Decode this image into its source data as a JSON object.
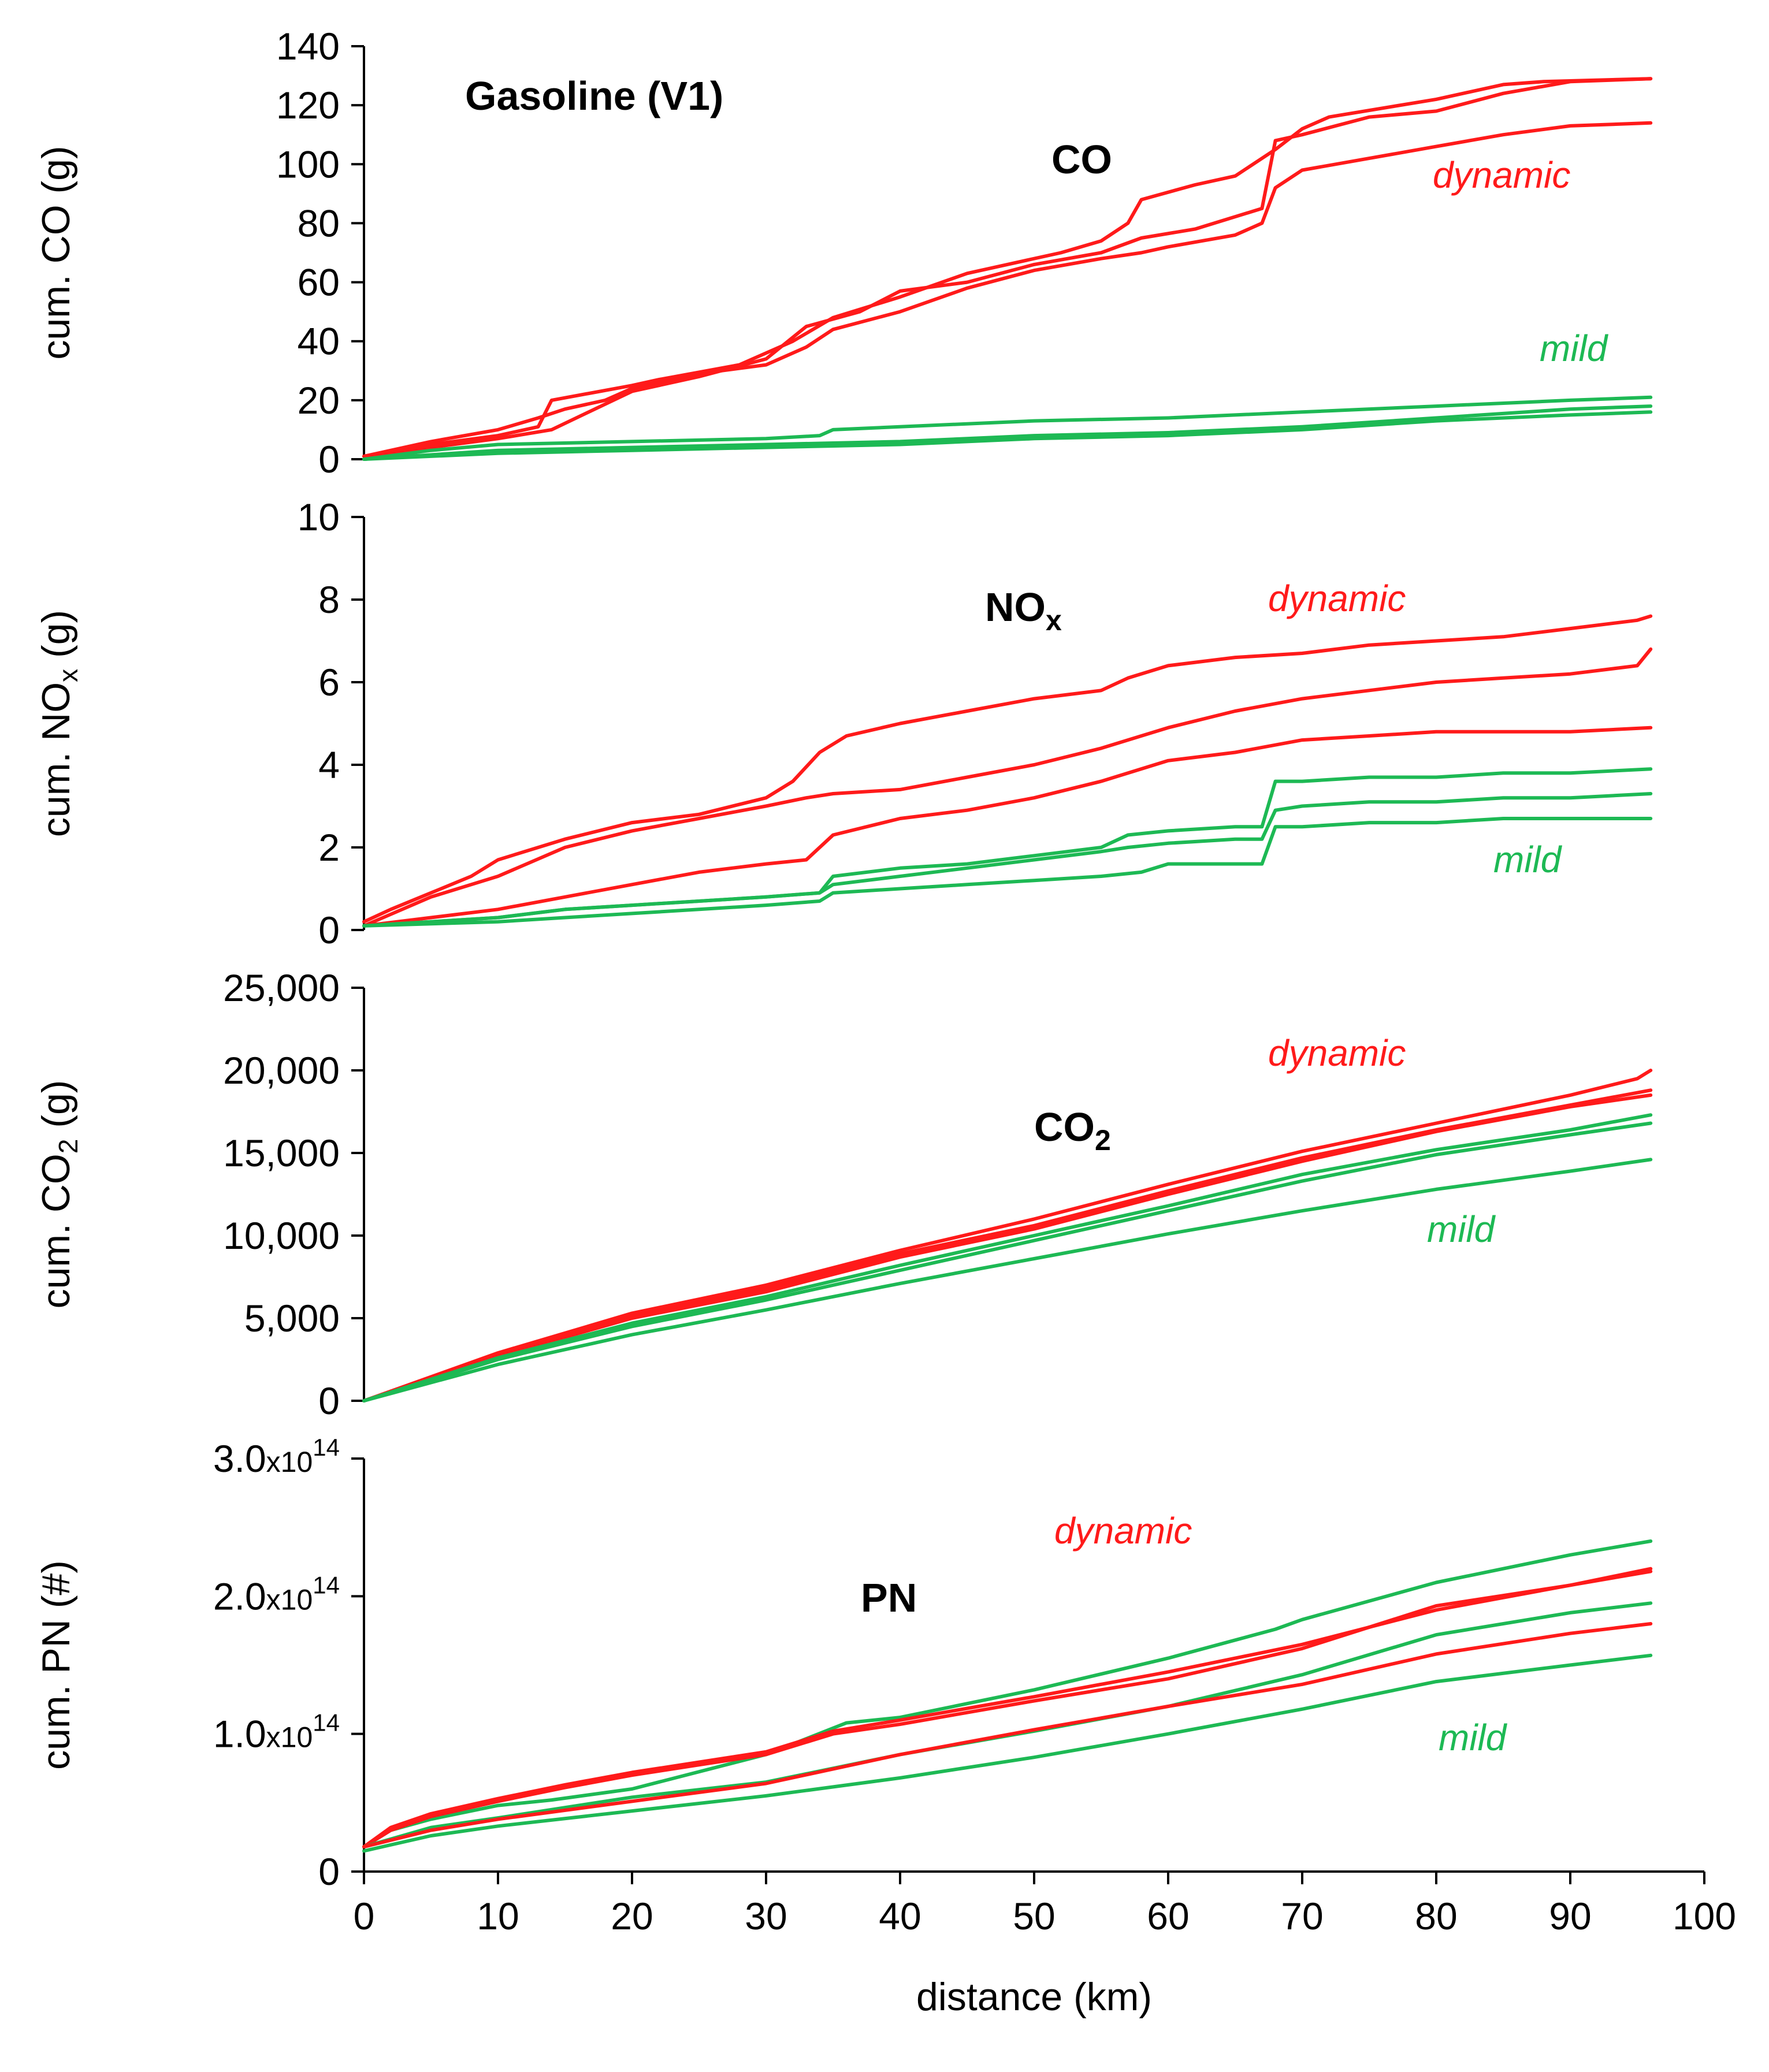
{
  "colors": {
    "dynamic": "#ff1a1a",
    "mild": "#1db954",
    "axis": "#000000"
  },
  "chart_data": [
    {
      "type": "line",
      "title": "Gasoline (V1)",
      "label": "CO",
      "ylabel": "cum. CO (g)",
      "ylim": [
        0,
        140
      ],
      "yticks": [
        "0",
        "20",
        "40",
        "60",
        "80",
        "100",
        "120",
        "140"
      ],
      "annotations": [
        {
          "text": "dynamic",
          "group": "dynamic"
        },
        {
          "text": "mild",
          "group": "mild"
        }
      ],
      "series": [
        {
          "group": "dynamic",
          "x": [
            0,
            5,
            10,
            13,
            14,
            20,
            22,
            28,
            32,
            35,
            40,
            45,
            48,
            52,
            55,
            57,
            58,
            62,
            65,
            68,
            70,
            72,
            80,
            85,
            88,
            96
          ],
          "y": [
            1,
            5,
            8,
            11,
            20,
            25,
            27,
            32,
            40,
            48,
            55,
            63,
            66,
            70,
            74,
            80,
            88,
            93,
            96,
            105,
            112,
            116,
            122,
            127,
            128,
            129
          ]
        },
        {
          "group": "dynamic",
          "x": [
            0,
            5,
            10,
            14,
            20,
            25,
            30,
            33,
            37,
            40,
            45,
            50,
            55,
            58,
            62,
            67,
            68,
            70,
            75,
            80,
            85,
            90,
            96
          ],
          "y": [
            1,
            4,
            7,
            10,
            23,
            28,
            34,
            45,
            50,
            57,
            60,
            66,
            70,
            75,
            78,
            85,
            108,
            110,
            116,
            118,
            124,
            128,
            129
          ]
        },
        {
          "group": "dynamic",
          "x": [
            0,
            5,
            10,
            13,
            15,
            18,
            20,
            25,
            30,
            33,
            35,
            40,
            45,
            50,
            55,
            58,
            60,
            65,
            67,
            68,
            70,
            75,
            80,
            85,
            90,
            96
          ],
          "y": [
            1,
            6,
            10,
            14,
            17,
            20,
            24,
            29,
            32,
            38,
            44,
            50,
            58,
            64,
            68,
            70,
            72,
            76,
            80,
            92,
            98,
            102,
            106,
            110,
            113,
            114
          ]
        },
        {
          "group": "mild",
          "x": [
            0,
            5,
            10,
            20,
            30,
            34,
            35,
            40,
            50,
            60,
            65,
            70,
            80,
            90,
            96
          ],
          "y": [
            0,
            3,
            5,
            6,
            7,
            8,
            10,
            11,
            13,
            14,
            15,
            16,
            18,
            20,
            21
          ]
        },
        {
          "group": "mild",
          "x": [
            0,
            10,
            20,
            30,
            40,
            50,
            60,
            70,
            80,
            90,
            96
          ],
          "y": [
            0,
            3,
            4,
            5,
            6,
            8,
            9,
            11,
            14,
            17,
            18
          ]
        },
        {
          "group": "mild",
          "x": [
            0,
            10,
            20,
            30,
            40,
            50,
            60,
            70,
            80,
            90,
            96
          ],
          "y": [
            0,
            2,
            3,
            4,
            5,
            7,
            8,
            10,
            13,
            15,
            16
          ]
        }
      ]
    },
    {
      "type": "line",
      "label": "NOx",
      "ylabel": "cum. NOx (g)",
      "ylim": [
        0,
        10
      ],
      "yticks": [
        "0",
        "2",
        "4",
        "6",
        "8",
        "10"
      ],
      "annotations": [
        {
          "text": "dynamic",
          "group": "dynamic"
        },
        {
          "text": "mild",
          "group": "mild"
        }
      ],
      "series": [
        {
          "group": "dynamic",
          "x": [
            0,
            2,
            5,
            8,
            10,
            15,
            20,
            25,
            30,
            32,
            34,
            36,
            40,
            45,
            50,
            55,
            57,
            60,
            65,
            70,
            75,
            80,
            85,
            90,
            95,
            96
          ],
          "y": [
            0.2,
            0.5,
            0.9,
            1.3,
            1.7,
            2.2,
            2.6,
            2.8,
            3.2,
            3.6,
            4.3,
            4.7,
            5.0,
            5.3,
            5.6,
            5.8,
            6.1,
            6.4,
            6.6,
            6.7,
            6.9,
            7.0,
            7.1,
            7.3,
            7.5,
            7.6
          ]
        },
        {
          "group": "dynamic",
          "x": [
            0,
            5,
            10,
            15,
            20,
            25,
            30,
            33,
            35,
            40,
            45,
            50,
            55,
            60,
            65,
            70,
            75,
            80,
            85,
            90,
            95,
            96
          ],
          "y": [
            0.1,
            0.8,
            1.3,
            2.0,
            2.4,
            2.7,
            3.0,
            3.2,
            3.3,
            3.4,
            3.7,
            4.0,
            4.4,
            4.9,
            5.3,
            5.6,
            5.8,
            6.0,
            6.1,
            6.2,
            6.4,
            6.8
          ]
        },
        {
          "group": "dynamic",
          "x": [
            0,
            5,
            10,
            15,
            20,
            25,
            30,
            33,
            35,
            40,
            45,
            50,
            55,
            60,
            65,
            70,
            75,
            80,
            85,
            90,
            96
          ],
          "y": [
            0.1,
            0.3,
            0.5,
            0.8,
            1.1,
            1.4,
            1.6,
            1.7,
            2.3,
            2.7,
            2.9,
            3.2,
            3.6,
            4.1,
            4.3,
            4.6,
            4.7,
            4.8,
            4.8,
            4.8,
            4.9
          ]
        },
        {
          "group": "mild",
          "x": [
            0,
            10,
            15,
            20,
            25,
            30,
            34,
            35,
            40,
            45,
            50,
            55,
            57,
            60,
            65,
            67,
            68,
            70,
            75,
            80,
            85,
            90,
            96
          ],
          "y": [
            0.1,
            0.3,
            0.5,
            0.6,
            0.7,
            0.8,
            0.9,
            1.3,
            1.5,
            1.6,
            1.8,
            2.0,
            2.3,
            2.4,
            2.5,
            2.5,
            3.6,
            3.6,
            3.7,
            3.7,
            3.8,
            3.8,
            3.9
          ]
        },
        {
          "group": "mild",
          "x": [
            0,
            10,
            15,
            20,
            25,
            30,
            34,
            35,
            40,
            45,
            50,
            55,
            57,
            60,
            65,
            67,
            68,
            70,
            75,
            80,
            85,
            90,
            96
          ],
          "y": [
            0.1,
            0.3,
            0.5,
            0.6,
            0.7,
            0.8,
            0.9,
            1.1,
            1.3,
            1.5,
            1.7,
            1.9,
            2.0,
            2.1,
            2.2,
            2.2,
            2.9,
            3.0,
            3.1,
            3.1,
            3.2,
            3.2,
            3.3
          ]
        },
        {
          "group": "mild",
          "x": [
            0,
            10,
            15,
            20,
            25,
            30,
            34,
            35,
            40,
            45,
            50,
            55,
            58,
            60,
            65,
            67,
            68,
            70,
            75,
            80,
            85,
            90,
            96
          ],
          "y": [
            0.1,
            0.2,
            0.3,
            0.4,
            0.5,
            0.6,
            0.7,
            0.9,
            1.0,
            1.1,
            1.2,
            1.3,
            1.4,
            1.6,
            1.6,
            1.6,
            2.5,
            2.5,
            2.6,
            2.6,
            2.7,
            2.7,
            2.7
          ]
        }
      ]
    },
    {
      "type": "line",
      "label": "CO2",
      "ylabel": "cum. CO2 (g)",
      "ylim": [
        0,
        25000
      ],
      "yticks": [
        "0",
        "5,000",
        "10,000",
        "15,000",
        "20,000",
        "25,000"
      ],
      "annotations": [
        {
          "text": "dynamic",
          "group": "dynamic"
        },
        {
          "text": "mild",
          "group": "mild"
        }
      ],
      "series": [
        {
          "group": "dynamic",
          "x": [
            0,
            10,
            20,
            30,
            40,
            50,
            60,
            70,
            80,
            90,
            95,
            96
          ],
          "y": [
            0,
            2900,
            5300,
            7000,
            9100,
            11000,
            13100,
            15100,
            16800,
            18500,
            19500,
            20000
          ]
        },
        {
          "group": "dynamic",
          "x": [
            0,
            10,
            20,
            30,
            40,
            50,
            60,
            70,
            80,
            90,
            96
          ],
          "y": [
            0,
            2800,
            5100,
            6800,
            8900,
            10600,
            12700,
            14700,
            16400,
            17900,
            18800
          ]
        },
        {
          "group": "dynamic",
          "x": [
            0,
            10,
            20,
            30,
            40,
            50,
            60,
            70,
            80,
            90,
            96
          ],
          "y": [
            0,
            2700,
            5000,
            6600,
            8700,
            10400,
            12500,
            14500,
            16300,
            17800,
            18500
          ]
        },
        {
          "group": "mild",
          "x": [
            0,
            10,
            20,
            30,
            40,
            50,
            60,
            70,
            80,
            90,
            96
          ],
          "y": [
            0,
            2600,
            4700,
            6300,
            8200,
            10000,
            11800,
            13700,
            15200,
            16400,
            17300
          ]
        },
        {
          "group": "mild",
          "x": [
            0,
            10,
            20,
            30,
            40,
            50,
            60,
            70,
            80,
            90,
            96
          ],
          "y": [
            0,
            2500,
            4500,
            6100,
            7900,
            9700,
            11500,
            13300,
            14900,
            16100,
            16800
          ]
        },
        {
          "group": "mild",
          "x": [
            0,
            10,
            20,
            30,
            40,
            50,
            60,
            70,
            80,
            90,
            96
          ],
          "y": [
            0,
            2200,
            4000,
            5500,
            7100,
            8600,
            10100,
            11500,
            12800,
            13900,
            14600
          ]
        }
      ]
    },
    {
      "type": "line",
      "label": "PN",
      "ylabel": "cum. PN (#)",
      "ylim": [
        0,
        300000000000000.0
      ],
      "yticks": [
        "0",
        "1.0x10^14",
        "2.0x10^14",
        "3.0x10^14"
      ],
      "annotations": [
        {
          "text": "dynamic",
          "group": "dynamic"
        },
        {
          "text": "mild",
          "group": "mild"
        }
      ],
      "series": [
        {
          "group": "mild",
          "x": [
            0,
            2,
            5,
            10,
            14,
            20,
            30,
            36,
            40,
            50,
            60,
            68,
            70,
            80,
            90,
            96
          ],
          "y": [
            18000000000000.0,
            30000000000000.0,
            38000000000000.0,
            48000000000000.0,
            52000000000000.0,
            60000000000000.0,
            85000000000000.0,
            108000000000000.0,
            112000000000000.0,
            132000000000000.0,
            155000000000000.0,
            176000000000000.0,
            183000000000000.0,
            210000000000000.0,
            230000000000000.0,
            240000000000000.0
          ]
        },
        {
          "group": "dynamic",
          "x": [
            0,
            2,
            5,
            10,
            15,
            20,
            30,
            35,
            40,
            50,
            60,
            70,
            80,
            90,
            96
          ],
          "y": [
            18000000000000.0,
            32000000000000.0,
            42000000000000.0,
            53000000000000.0,
            63000000000000.0,
            72000000000000.0,
            87000000000000.0,
            102000000000000.0,
            110000000000000.0,
            127000000000000.0,
            145000000000000.0,
            165000000000000.0,
            190000000000000.0,
            208000000000000.0,
            220000000000000.0
          ]
        },
        {
          "group": "dynamic",
          "x": [
            0,
            2,
            5,
            10,
            15,
            20,
            30,
            35,
            40,
            50,
            60,
            70,
            80,
            90,
            96
          ],
          "y": [
            18000000000000.0,
            30000000000000.0,
            40000000000000.0,
            51000000000000.0,
            61000000000000.0,
            70000000000000.0,
            85000000000000.0,
            100000000000000.0,
            107000000000000.0,
            124000000000000.0,
            140000000000000.0,
            162000000000000.0,
            193000000000000.0,
            208000000000000.0,
            218000000000000.0
          ]
        },
        {
          "group": "mild",
          "x": [
            0,
            5,
            10,
            20,
            30,
            40,
            50,
            60,
            70,
            80,
            90,
            96
          ],
          "y": [
            18000000000000.0,
            32000000000000.0,
            39000000000000.0,
            54000000000000.0,
            65000000000000.0,
            85000000000000.0,
            102000000000000.0,
            120000000000000.0,
            143000000000000.0,
            172000000000000.0,
            188000000000000.0,
            195000000000000.0
          ]
        },
        {
          "group": "dynamic",
          "x": [
            0,
            5,
            10,
            20,
            30,
            40,
            50,
            60,
            70,
            80,
            90,
            96
          ],
          "y": [
            18000000000000.0,
            30000000000000.0,
            38000000000000.0,
            51000000000000.0,
            64000000000000.0,
            85000000000000.0,
            103000000000000.0,
            120000000000000.0,
            136000000000000.0,
            158000000000000.0,
            173000000000000.0,
            180000000000000.0
          ]
        },
        {
          "group": "mild",
          "x": [
            0,
            5,
            10,
            20,
            30,
            40,
            50,
            60,
            70,
            80,
            90,
            96
          ],
          "y": [
            15000000000000.0,
            26000000000000.0,
            33000000000000.0,
            44000000000000.0,
            55000000000000.0,
            68000000000000.0,
            83000000000000.0,
            100000000000000.0,
            118000000000000.0,
            138000000000000.0,
            150000000000000.0,
            157000000000000.0
          ]
        }
      ]
    }
  ],
  "x_axis": {
    "label": "distance (km)",
    "xlim": [
      0,
      100
    ],
    "ticks": [
      "0",
      "10",
      "20",
      "30",
      "40",
      "50",
      "60",
      "70",
      "80",
      "90",
      "100"
    ]
  }
}
